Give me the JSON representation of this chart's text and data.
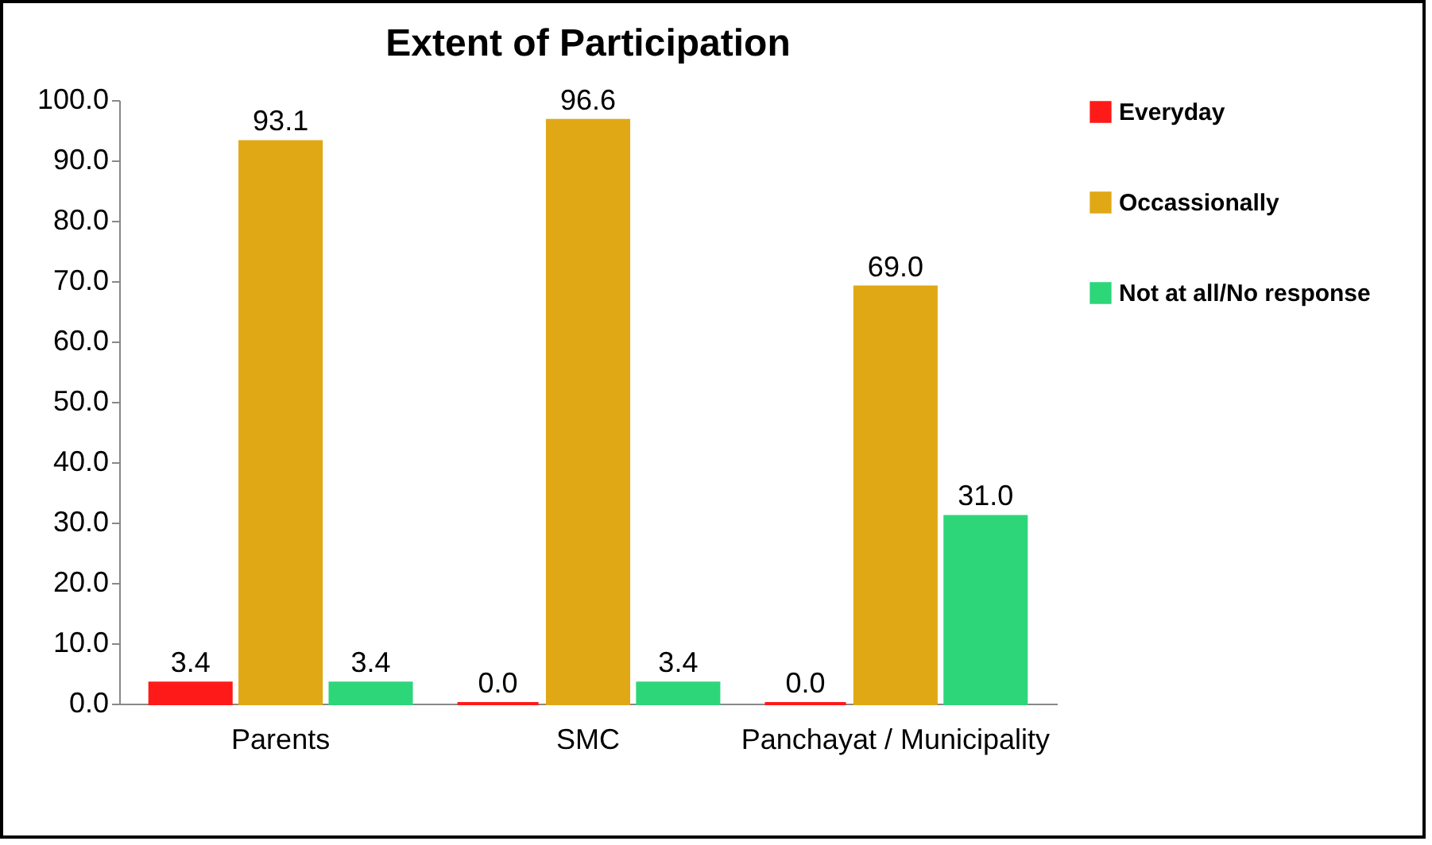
{
  "chart_data": {
    "type": "bar",
    "title": "Extent of Participation",
    "categories": [
      "Parents",
      "SMC",
      "Panchayat / Municipality"
    ],
    "series": [
      {
        "name": "Everyday",
        "color": "#ff1a1a",
        "values": [
          3.4,
          0.0,
          0.0
        ],
        "value_labels": [
          "3.4",
          "0.0",
          "0.0"
        ]
      },
      {
        "name": "Occassionally",
        "color": "#e0a815",
        "values": [
          93.1,
          96.6,
          69.0
        ],
        "value_labels": [
          "93.1",
          "96.6",
          "69.0"
        ]
      },
      {
        "name": "Not at all/No response",
        "color": "#2ed67a",
        "values": [
          3.4,
          3.4,
          31.0
        ],
        "value_labels": [
          "3.4",
          "3.4",
          "31.0"
        ]
      }
    ],
    "ylim": [
      0,
      100
    ],
    "yticks": [
      {
        "value": 0,
        "label": "0.0"
      },
      {
        "value": 10,
        "label": "10.0"
      },
      {
        "value": 20,
        "label": "20.0"
      },
      {
        "value": 30,
        "label": "30.0"
      },
      {
        "value": 40,
        "label": "40.0"
      },
      {
        "value": 50,
        "label": "50.0"
      },
      {
        "value": 60,
        "label": "60.0"
      },
      {
        "value": 70,
        "label": "70.0"
      },
      {
        "value": 80,
        "label": "80.0"
      },
      {
        "value": 90,
        "label": "90.0"
      },
      {
        "value": 100,
        "label": "100.0"
      }
    ],
    "grid": false,
    "legend": "right"
  }
}
